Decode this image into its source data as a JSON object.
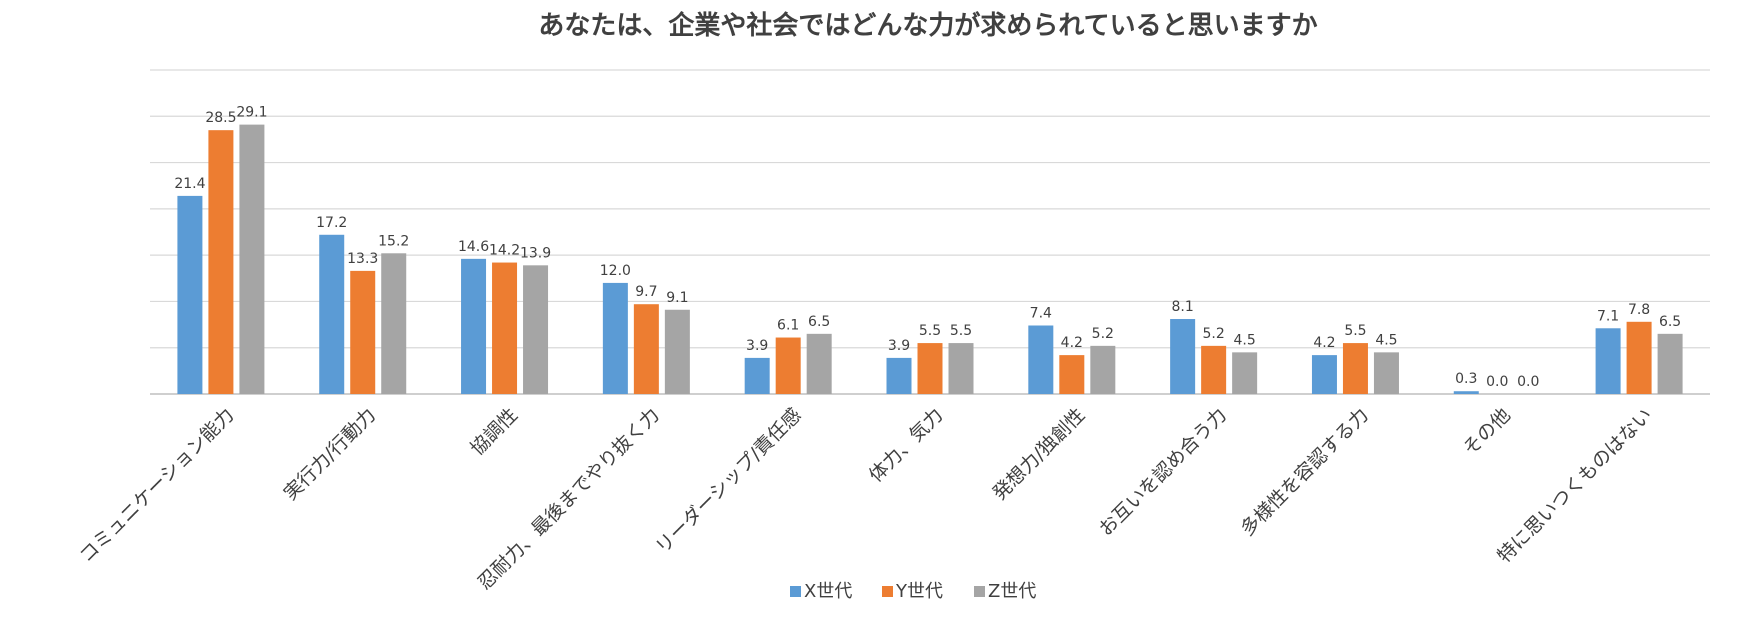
{
  "chart_data": {
    "type": "bar",
    "title": "あなたは、企業や社会ではどんな力が求められていると思いますか",
    "xlabel": "",
    "ylabel": "",
    "ylim": [
      0,
      35
    ],
    "grid": true,
    "legend_position": "bottom",
    "categories": [
      "コミュニケーション能力",
      "実行力/行動力",
      "協調性",
      "忍耐力、最後までやり抜く力",
      "リーダーシップ/責任感",
      "体力、気力",
      "発想力/独創性",
      "お互いを認め合う力",
      "多様性を容認する力",
      "その他",
      "特に思いつくものはない"
    ],
    "series": [
      {
        "name": "X世代",
        "color": "#5b9bd5",
        "values": [
          21.4,
          17.2,
          14.6,
          12.0,
          3.9,
          3.9,
          7.4,
          8.1,
          4.2,
          0.3,
          7.1
        ],
        "labels": [
          "21.4",
          "17.2",
          "14.6",
          "12.0",
          "3.9",
          "3.9",
          "7.4",
          "8.1",
          "4.2",
          "0.3",
          "7.1"
        ]
      },
      {
        "name": "Y世代",
        "color": "#ed7d31",
        "values": [
          28.5,
          13.3,
          14.2,
          9.7,
          6.1,
          5.5,
          4.2,
          5.2,
          5.5,
          0.0,
          7.8
        ],
        "labels": [
          "28.5",
          "13.3",
          "14.2",
          "9.7",
          "6.1",
          "5.5",
          "4.2",
          "5.2",
          "5.5",
          "0.0",
          "7.8"
        ]
      },
      {
        "name": "Z世代",
        "color": "#a5a5a5",
        "values": [
          29.1,
          15.2,
          13.9,
          9.1,
          6.5,
          5.5,
          5.2,
          4.5,
          4.5,
          0.0,
          6.5
        ],
        "labels": [
          "29.1",
          "15.2",
          "13.9",
          "9.1",
          "6.5",
          "5.5",
          "5.2",
          "4.5",
          "4.5",
          "0.0",
          "6.5"
        ]
      }
    ]
  }
}
